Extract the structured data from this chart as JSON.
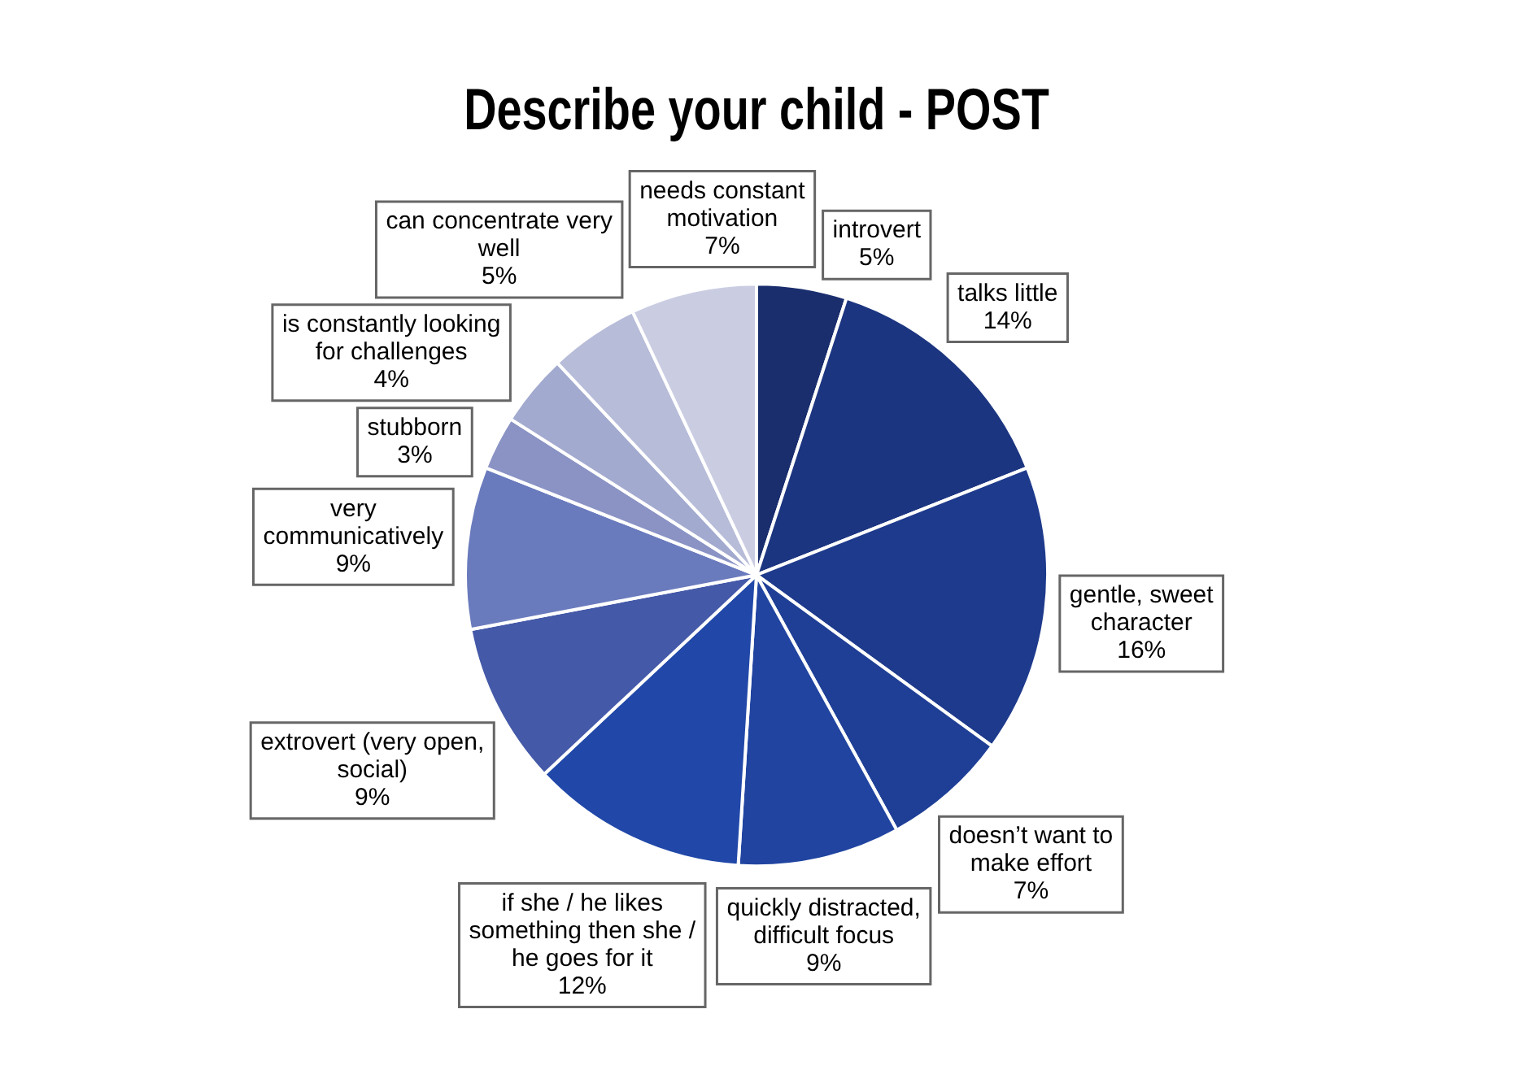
{
  "chart_data": {
    "type": "pie",
    "title": "Describe your child - POST",
    "categories": [
      "introvert",
      "talks little",
      "gentle, sweet character",
      "doesn’t want to make effort",
      "quickly distracted, difficult focus",
      "if she / he likes something then she / he goes for it",
      "extrovert (very open, social)",
      "very communicatively",
      "stubborn",
      "is constantly looking for challenges",
      "can concentrate very well",
      "needs constant motivation"
    ],
    "values": [
      5,
      14,
      16,
      7,
      9,
      12,
      9,
      9,
      3,
      4,
      5,
      7
    ],
    "colors": [
      "#1a2e6e",
      "#1c3580",
      "#1e3a8c",
      "#1f3f96",
      "#2044a0",
      "#2148a8",
      "#4459a8",
      "#6a7bbd",
      "#8a93c4",
      "#a3aacf",
      "#b7bcd9",
      "#cacde2"
    ],
    "value_labels": [
      "5%",
      "14%",
      "16%",
      "7%",
      "9%",
      "12%",
      "9%",
      "9%",
      "3%",
      "4%",
      "5%",
      "7%"
    ],
    "legend": false
  }
}
